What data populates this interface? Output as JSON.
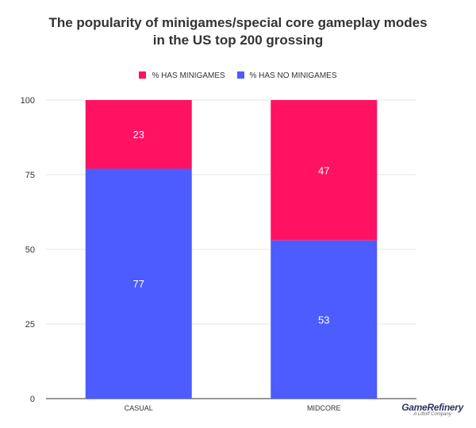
{
  "chart_data": {
    "type": "bar",
    "stacked": true,
    "title_line1": "The popularity of minigames/special core gameplay modes",
    "title_line2": "in the US top 200 grossing",
    "categories": [
      "CASUAL",
      "MIDCORE"
    ],
    "series": [
      {
        "name": "% HAS NO MINIGAMES",
        "values": [
          77,
          53
        ],
        "color": "#4c5cff"
      },
      {
        "name": "%  HAS MINIGAMES",
        "values": [
          23,
          47
        ],
        "color": "#ff1261"
      }
    ],
    "ylim": [
      0,
      100
    ],
    "yticks": [
      0,
      25,
      50,
      75,
      100
    ],
    "legend_position": "top",
    "grid": true
  },
  "brand": {
    "name": "GameRefinery",
    "sub": "A Liftoff Company"
  }
}
